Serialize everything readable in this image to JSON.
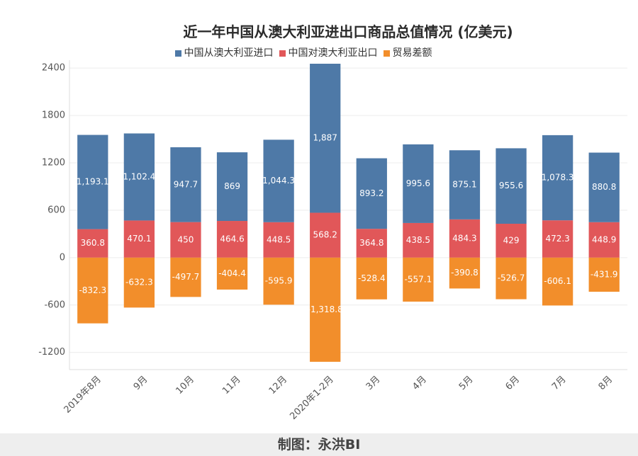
{
  "chart_data": {
    "type": "bar",
    "stacked": true,
    "title": "近一年中国从澳大利亚进出口商品总值情况 (亿美元)",
    "categories": [
      "2019年8月",
      "9月",
      "10月",
      "11月",
      "12月",
      "2020年1-2月",
      "3月",
      "4月",
      "5月",
      "6月",
      "7月",
      "8月"
    ],
    "series": [
      {
        "name": "中国从澳大利亚进口",
        "color": "#4E79A7",
        "values": [
          1193.1,
          1102.4,
          947.7,
          869,
          1044.3,
          1887,
          893.2,
          995.6,
          875.1,
          955.6,
          1078.3,
          880.8
        ]
      },
      {
        "name": "中国对澳大利亚出口",
        "color": "#E15759",
        "values": [
          360.8,
          470.1,
          450,
          464.6,
          448.5,
          568.2,
          364.8,
          438.5,
          484.3,
          429,
          472.3,
          448.9
        ]
      },
      {
        "name": "贸易差额",
        "color": "#F28E2B",
        "values": [
          -832.3,
          -632.3,
          -497.7,
          -404.4,
          -595.9,
          -1318.8,
          -528.4,
          -557.1,
          -390.8,
          -526.7,
          -606.1,
          -431.9
        ]
      }
    ],
    "yticks": [
      2400,
      1800,
      1200,
      600,
      0,
      -600,
      -1200
    ],
    "ylim": [
      -1400,
      2500
    ],
    "grid": true,
    "data_labels": true,
    "legend_position": "top"
  },
  "footer": {
    "credit": "制图：永洪BI"
  }
}
